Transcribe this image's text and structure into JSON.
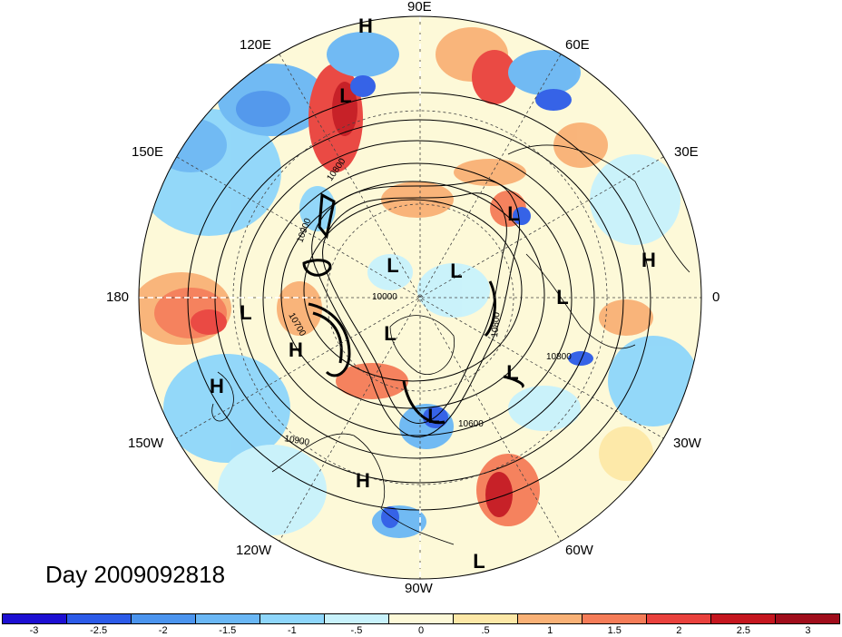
{
  "longitude_labels": {
    "e90": "90E",
    "e120": "120E",
    "e60": "60E",
    "e150": "150E",
    "e30": "30E",
    "d180": "180",
    "d0": "0",
    "w150": "150W",
    "w30": "30W",
    "w120": "120W",
    "w60": "60W",
    "w90": "90W"
  },
  "day_label": "Day 2009092818",
  "colorbar": {
    "colors": [
      "#1d0fd2",
      "#2c5be8",
      "#4b94ee",
      "#6ab7f5",
      "#8ed6fb",
      "#c8f2fc",
      "#fdf9d8",
      "#fde8a7",
      "#f9b176",
      "#f57c58",
      "#e9413d",
      "#c5161f",
      "#a00d1b"
    ],
    "ticks": [
      "-3",
      "-2.5",
      "-2",
      "-1.5",
      "-1",
      "-.5",
      "0",
      ".5",
      "1",
      "1.5",
      "2",
      "2.5",
      "3"
    ]
  },
  "map": {
    "pressure_centers": [
      {
        "label": "H"
      },
      {
        "label": "L"
      },
      {
        "label": "L"
      },
      {
        "label": "L"
      },
      {
        "label": "L"
      },
      {
        "label": "H"
      },
      {
        "label": "L"
      },
      {
        "label": "L"
      },
      {
        "label": "H"
      },
      {
        "label": "L"
      },
      {
        "label": "H"
      },
      {
        "label": "L"
      },
      {
        "label": "L"
      },
      {
        "label": "H"
      },
      {
        "label": "L"
      }
    ],
    "contour_labels": [
      "10800",
      "10900",
      "10800",
      "10000",
      "10700",
      "10800",
      "10900",
      "10600"
    ]
  }
}
